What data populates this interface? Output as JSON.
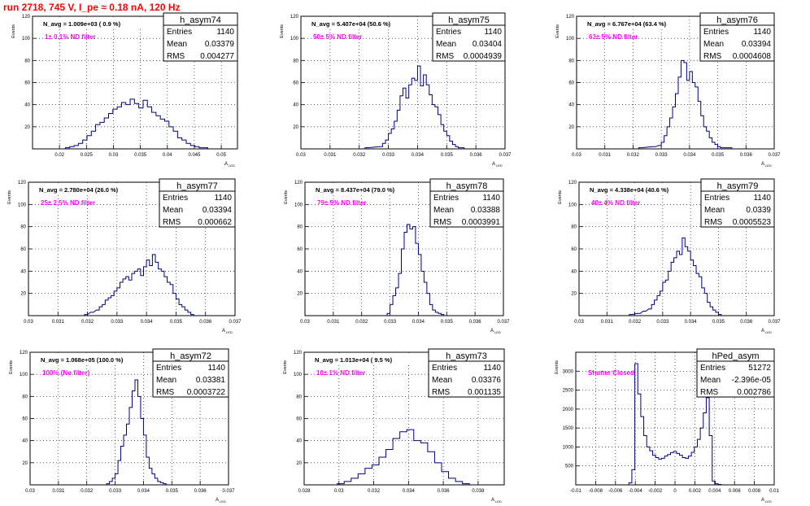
{
  "page": {
    "title": "run 2718,   745 V, I_pe ≈ 0.18 nA, 120 Hz"
  },
  "chart_data": [
    {
      "type": "histogram",
      "title": "h_asym74",
      "stats": [
        [
          "Entries",
          "1140"
        ],
        [
          "Mean",
          "0.03379"
        ],
        [
          "RMS",
          "0.004277"
        ]
      ],
      "navg": "N_avg = 1.009e+03 ( 0.9 %)",
      "filter": "1± 0.1% ND filter",
      "xlabel": "A",
      "xlabel_sub": "LED",
      "ylabel": "Events",
      "xlim": [
        0.015,
        0.053
      ],
      "ylim": [
        0,
        120
      ],
      "xticks": [
        "0.02",
        "0.025",
        "0.03",
        "0.035",
        "0.04",
        "0.045",
        "0.05"
      ],
      "xtick_values": [
        0.02,
        0.025,
        0.03,
        0.035,
        0.04,
        0.045,
        0.05
      ],
      "yticks": [
        "20",
        "40",
        "60",
        "80",
        "100",
        "120"
      ],
      "ytick_values": [
        20,
        40,
        60,
        80,
        100,
        120
      ],
      "x": [
        0.0215,
        0.0223,
        0.0231,
        0.0239,
        0.0247,
        0.0255,
        0.0263,
        0.0271,
        0.0279,
        0.0287,
        0.0295,
        0.0303,
        0.0311,
        0.0319,
        0.0327,
        0.0335,
        0.0343,
        0.0351,
        0.0359,
        0.0367,
        0.0375,
        0.0383,
        0.0391,
        0.0399,
        0.0407,
        0.0415,
        0.0423,
        0.0431,
        0.0439,
        0.0447,
        0.0455,
        0.0463,
        0.0471
      ],
      "values": [
        1,
        2,
        3,
        5,
        8,
        12,
        16,
        22,
        24,
        28,
        32,
        36,
        38,
        42,
        40,
        45,
        41,
        37,
        44,
        38,
        33,
        30,
        27,
        25,
        20,
        16,
        10,
        8,
        5,
        3,
        2,
        1,
        1
      ]
    },
    {
      "type": "histogram",
      "title": "h_asym75",
      "stats": [
        [
          "Entries",
          "1140"
        ],
        [
          "Mean",
          "0.03404"
        ],
        [
          "RMS",
          "0.0004939"
        ]
      ],
      "navg": "N_avg = 5.407e+04 (50.6 %)",
      "filter": "50± 5% ND filter",
      "xlabel": "A",
      "xlabel_sub": "LED",
      "ylabel": "Events",
      "xlim": [
        0.03,
        0.037
      ],
      "ylim": [
        0,
        120
      ],
      "xticks": [
        "0.03",
        "0.031",
        "0.032",
        "0.033",
        "0.034",
        "0.035",
        "0.036",
        "0.037"
      ],
      "xtick_values": [
        0.03,
        0.031,
        0.032,
        0.033,
        0.034,
        0.035,
        0.036,
        0.037
      ],
      "yticks": [
        "20",
        "40",
        "60",
        "80",
        "100",
        "120"
      ],
      "ytick_values": [
        20,
        40,
        60,
        80,
        100,
        120
      ],
      "x": [
        0.03225,
        0.03275,
        0.03285,
        0.03295,
        0.03305,
        0.03315,
        0.03325,
        0.03335,
        0.03345,
        0.03355,
        0.03365,
        0.03375,
        0.03385,
        0.03395,
        0.03405,
        0.03415,
        0.03425,
        0.03435,
        0.03445,
        0.03455,
        0.03465,
        0.03475,
        0.03485,
        0.03495,
        0.03505,
        0.03515,
        0.03525,
        0.03535,
        0.03545,
        0.03555
      ],
      "values": [
        1,
        2,
        5,
        8,
        14,
        18,
        25,
        35,
        48,
        55,
        46,
        58,
        64,
        62,
        75,
        57,
        67,
        58,
        49,
        40,
        38,
        31,
        22,
        16,
        12,
        7,
        4,
        2,
        1,
        1
      ]
    },
    {
      "type": "histogram",
      "title": "h_asym76",
      "stats": [
        [
          "Entries",
          "1140"
        ],
        [
          "Mean",
          "0.03394"
        ],
        [
          "RMS",
          "0.0004608"
        ]
      ],
      "navg": "N_avg = 6.767e+04 (63.4 %)",
      "filter": "63± 5% ND filter",
      "xlabel": "A",
      "xlabel_sub": "LED",
      "ylabel": "Events",
      "xlim": [
        0.03,
        0.037
      ],
      "ylim": [
        0,
        120
      ],
      "xticks": [
        "0.03",
        "0.031",
        "0.032",
        "0.033",
        "0.034",
        "0.035",
        "0.036",
        "0.037"
      ],
      "xtick_values": [
        0.03,
        0.031,
        0.032,
        0.033,
        0.034,
        0.035,
        0.036,
        0.037
      ],
      "yticks": [
        "20",
        "40",
        "60",
        "80",
        "100",
        "120"
      ],
      "ytick_values": [
        20,
        40,
        60,
        80,
        100,
        120
      ],
      "x": [
        0.03225,
        0.03275,
        0.03295,
        0.03305,
        0.03315,
        0.03325,
        0.03335,
        0.03345,
        0.03355,
        0.03365,
        0.03375,
        0.03385,
        0.03395,
        0.03405,
        0.03415,
        0.03425,
        0.03435,
        0.03445,
        0.03455,
        0.03465,
        0.03475,
        0.03485,
        0.03495,
        0.03505,
        0.03515,
        0.03525,
        0.03535,
        0.03545
      ],
      "values": [
        1,
        2,
        3,
        6,
        12,
        20,
        28,
        38,
        50,
        65,
        80,
        78,
        62,
        70,
        60,
        56,
        43,
        30,
        20,
        16,
        10,
        6,
        4,
        2,
        1,
        1,
        1,
        1
      ]
    },
    {
      "type": "histogram",
      "title": "h_asym77",
      "stats": [
        [
          "Entries",
          "1140"
        ],
        [
          "Mean",
          "0.03394"
        ],
        [
          "RMS",
          "0.000662"
        ]
      ],
      "navg": "N_avg = 2.780e+04 (26.0 %)",
      "filter": "25± 2.5% ND filter",
      "xlabel": "A",
      "xlabel_sub": "LED",
      "ylabel": "Events",
      "xlim": [
        0.03,
        0.037
      ],
      "ylim": [
        0,
        120
      ],
      "xticks": [
        "0.03",
        "0.031",
        "0.032",
        "0.033",
        "0.034",
        "0.035",
        "0.036",
        "0.037"
      ],
      "xtick_values": [
        0.03,
        0.031,
        0.032,
        0.033,
        0.034,
        0.035,
        0.036,
        0.037
      ],
      "yticks": [
        "20",
        "40",
        "60",
        "80",
        "100",
        "120"
      ],
      "ytick_values": [
        20,
        40,
        60,
        80,
        100,
        120
      ],
      "x": [
        0.03195,
        0.03215,
        0.03235,
        0.03245,
        0.03255,
        0.03265,
        0.03275,
        0.03285,
        0.03295,
        0.03305,
        0.03315,
        0.03325,
        0.03335,
        0.03345,
        0.03355,
        0.03365,
        0.03375,
        0.03385,
        0.03395,
        0.03405,
        0.03415,
        0.03425,
        0.03435,
        0.03445,
        0.03455,
        0.03465,
        0.03475,
        0.03485,
        0.03495,
        0.03505,
        0.03515,
        0.03525,
        0.03535,
        0.03545,
        0.03555
      ],
      "values": [
        1,
        3,
        5,
        8,
        10,
        14,
        16,
        18,
        22,
        25,
        30,
        33,
        35,
        32,
        38,
        40,
        42,
        36,
        44,
        50,
        45,
        55,
        48,
        42,
        40,
        35,
        30,
        28,
        20,
        15,
        10,
        8,
        5,
        3,
        1
      ]
    },
    {
      "type": "histogram",
      "title": "h_asym78",
      "stats": [
        [
          "Entries",
          "1140"
        ],
        [
          "Mean",
          "0.03388"
        ],
        [
          "RMS",
          "0.0003991"
        ]
      ],
      "navg": "N_avg = 8.437e+04 (79.0 %)",
      "filter": "79± 5% ND filter",
      "xlabel": "A",
      "xlabel_sub": "LED",
      "ylabel": "Events",
      "xlim": [
        0.03,
        0.037
      ],
      "ylim": [
        0,
        120
      ],
      "xticks": [
        "0.03",
        "0.031",
        "0.032",
        "0.033",
        "0.034",
        "0.035",
        "0.036",
        "0.037"
      ],
      "xtick_values": [
        0.03,
        0.031,
        0.032,
        0.033,
        0.034,
        0.035,
        0.036,
        0.037
      ],
      "yticks": [
        "20",
        "40",
        "60",
        "80",
        "100",
        "120"
      ],
      "ytick_values": [
        20,
        40,
        60,
        80,
        100,
        120
      ],
      "x": [
        0.03295,
        0.03305,
        0.03315,
        0.03325,
        0.03335,
        0.03345,
        0.03355,
        0.03365,
        0.03375,
        0.03385,
        0.03395,
        0.03405,
        0.03415,
        0.03425,
        0.03435,
        0.03445,
        0.03455,
        0.03465,
        0.03475,
        0.03485
      ],
      "values": [
        2,
        10,
        18,
        25,
        38,
        60,
        75,
        82,
        78,
        80,
        65,
        55,
        40,
        30,
        20,
        10,
        5,
        3,
        2,
        1
      ]
    },
    {
      "type": "histogram",
      "title": "h_asym79",
      "stats": [
        [
          "Entries",
          "1140"
        ],
        [
          "Mean",
          "0.0339"
        ],
        [
          "RMS",
          "0.0005523"
        ]
      ],
      "navg": "N_avg = 4.338e+04 (40.6 %)",
      "filter": "40± 4% ND filter",
      "xlabel": "A",
      "xlabel_sub": "LED",
      "ylabel": "Events",
      "xlim": [
        0.03,
        0.037
      ],
      "ylim": [
        0,
        120
      ],
      "xticks": [
        "0.03",
        "0.031",
        "0.032",
        "0.033",
        "0.034",
        "0.035",
        "0.036",
        "0.037"
      ],
      "xtick_values": [
        0.03,
        0.031,
        0.032,
        0.033,
        0.034,
        0.035,
        0.036,
        0.037
      ],
      "yticks": [
        "20",
        "40",
        "60",
        "80",
        "100",
        "120"
      ],
      "ytick_values": [
        20,
        40,
        60,
        80,
        100,
        120
      ],
      "x": [
        0.03185,
        0.03215,
        0.03235,
        0.03255,
        0.03265,
        0.03275,
        0.03285,
        0.03295,
        0.03305,
        0.03315,
        0.03325,
        0.03335,
        0.03345,
        0.03355,
        0.03365,
        0.03375,
        0.03385,
        0.03395,
        0.03405,
        0.03415,
        0.03425,
        0.03435,
        0.03445,
        0.03455,
        0.03465,
        0.03475,
        0.03485,
        0.03495,
        0.03505
      ],
      "values": [
        1,
        2,
        4,
        6,
        10,
        14,
        18,
        22,
        30,
        32,
        40,
        48,
        52,
        58,
        55,
        70,
        62,
        58,
        50,
        45,
        38,
        35,
        25,
        20,
        12,
        8,
        5,
        3,
        1
      ]
    },
    {
      "type": "histogram",
      "title": "h_asym72",
      "stats": [
        [
          "Entries",
          "1140"
        ],
        [
          "Mean",
          "0.03381"
        ],
        [
          "RMS",
          "0.0003722"
        ]
      ],
      "navg": "N_avg = 1.068e+05 (100.0 %)",
      "filter": "100% (No filter)",
      "xlabel": "A",
      "xlabel_sub": "LED",
      "ylabel": "Events",
      "xlim": [
        0.03,
        0.037
      ],
      "ylim": [
        0,
        120
      ],
      "xticks": [
        "0.03",
        "0.031",
        "0.032",
        "0.033",
        "0.034",
        "0.035",
        "0.036",
        "0.037"
      ],
      "xtick_values": [
        0.03,
        0.031,
        0.032,
        0.033,
        0.034,
        0.035,
        0.036,
        0.037
      ],
      "yticks": [
        "20",
        "40",
        "60",
        "80",
        "100",
        "120"
      ],
      "ytick_values": [
        20,
        40,
        60,
        80,
        100,
        120
      ],
      "x": [
        0.03275,
        0.03285,
        0.03295,
        0.03305,
        0.03315,
        0.03325,
        0.03335,
        0.03345,
        0.03355,
        0.03365,
        0.03375,
        0.03385,
        0.03395,
        0.03405,
        0.03415,
        0.03425,
        0.03435,
        0.03445,
        0.03455,
        0.03465,
        0.03475
      ],
      "values": [
        1,
        3,
        6,
        10,
        22,
        35,
        45,
        55,
        70,
        85,
        95,
        80,
        60,
        45,
        25,
        15,
        10,
        6,
        3,
        2,
        1
      ]
    },
    {
      "type": "histogram",
      "title": "h_asym73",
      "stats": [
        [
          "Entries",
          "1140"
        ],
        [
          "Mean",
          "0.03376"
        ],
        [
          "RMS",
          "0.001135"
        ]
      ],
      "navg": "N_avg = 1.013e+04 ( 9.5 %)",
      "filter": "10± 1% ND filter",
      "xlabel": "A",
      "xlabel_sub": "LED",
      "ylabel": "Events",
      "xlim": [
        0.028,
        0.0395
      ],
      "ylim": [
        0,
        120
      ],
      "xticks": [
        "0.028",
        "0.03",
        "0.032",
        "0.034",
        "0.036",
        "0.038"
      ],
      "xtick_values": [
        0.028,
        0.03,
        0.032,
        0.034,
        0.036,
        0.038
      ],
      "yticks": [
        "20",
        "40",
        "60",
        "80",
        "100",
        "120"
      ],
      "ytick_values": [
        20,
        40,
        60,
        80,
        100,
        120
      ],
      "x": [
        0.0301,
        0.0305,
        0.0309,
        0.0313,
        0.0317,
        0.0321,
        0.0325,
        0.0329,
        0.0333,
        0.0337,
        0.0341,
        0.0345,
        0.0349,
        0.0353,
        0.0357,
        0.0361,
        0.0365,
        0.0369,
        0.0373
      ],
      "values": [
        1,
        3,
        6,
        10,
        15,
        18,
        25,
        32,
        42,
        48,
        50,
        40,
        38,
        30,
        20,
        12,
        6,
        3,
        1
      ]
    },
    {
      "type": "histogram",
      "title": "hPed_asym",
      "stats": [
        [
          "Entries",
          "51272"
        ],
        [
          "Mean",
          "-2.396e-05"
        ],
        [
          "RMS",
          "0.002786"
        ]
      ],
      "navg": "",
      "filter": "Shutter Closed",
      "xlabel": "A",
      "xlabel_sub": "LED",
      "ylabel": "Events",
      "xlim": [
        -0.01,
        0.01
      ],
      "ylim": [
        0,
        3500
      ],
      "xticks": [
        "-0.01",
        "-0.008",
        "-0.006",
        "-0.004",
        "-0.002",
        "0",
        "0.002",
        "0.004",
        "0.006",
        "0.008",
        "0.01"
      ],
      "xtick_values": [
        -0.01,
        -0.008,
        -0.006,
        -0.004,
        -0.002,
        0,
        0.002,
        0.004,
        0.006,
        0.008,
        0.01
      ],
      "yticks": [
        "500",
        "1000",
        "1500",
        "2000",
        "2500",
        "3000"
      ],
      "ytick_values": [
        500,
        1000,
        1500,
        2000,
        2500,
        3000
      ],
      "x": [
        -0.0045,
        -0.0042,
        -0.0039,
        -0.0036,
        -0.0033,
        -0.003,
        -0.0027,
        -0.0024,
        -0.0021,
        -0.0018,
        -0.0015,
        -0.0012,
        -0.0009,
        -0.0006,
        -0.0003,
        0,
        0.0003,
        0.0006,
        0.0009,
        0.0012,
        0.0015,
        0.0018,
        0.0021,
        0.0024,
        0.0027,
        0.003,
        0.0033,
        0.0036,
        0.0039,
        0.0042,
        0.0045
      ],
      "values": [
        50,
        400,
        3200,
        2400,
        1800,
        1300,
        1000,
        900,
        780,
        720,
        680,
        700,
        760,
        800,
        850,
        880,
        830,
        780,
        720,
        700,
        760,
        860,
        1000,
        1200,
        1500,
        1900,
        2300,
        1300,
        100,
        30,
        10
      ]
    }
  ]
}
